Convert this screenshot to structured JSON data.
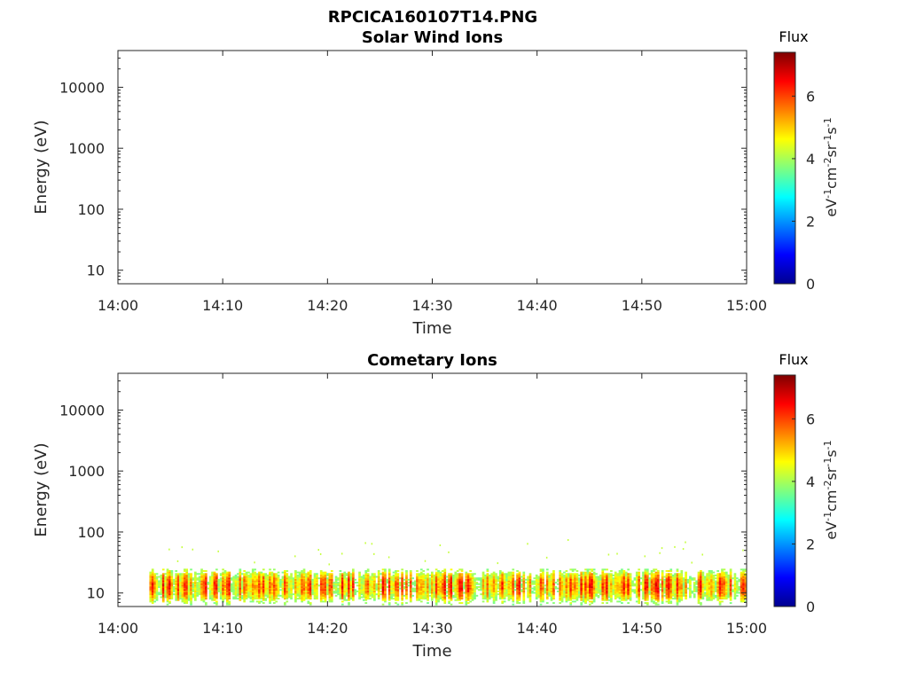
{
  "figure": {
    "title": "RPCICA160107T14.PNG"
  },
  "chart_data": [
    {
      "type": "heatmap",
      "title": "Solar Wind Ions",
      "xlabel": "Time",
      "ylabel": "Energy (eV)",
      "x_ticks": [
        "14:00",
        "14:10",
        "14:20",
        "14:30",
        "14:40",
        "14:50",
        "15:00"
      ],
      "y_ticks": [
        "10",
        "100",
        "1000",
        "10000"
      ],
      "y_scale": "log",
      "ylim": [
        6,
        40000
      ],
      "xlim": [
        "14:00",
        "15:00"
      ],
      "colorbar": {
        "title": "Flux",
        "label": "eV-1cm-2sr-1s-1",
        "ticks": [
          "0",
          "2",
          "4",
          "6"
        ],
        "range": [
          0,
          7.4
        ],
        "colormap": "jet"
      },
      "data_note": "empty"
    },
    {
      "type": "heatmap",
      "title": "Cometary Ions",
      "xlabel": "Time",
      "ylabel": "Energy (eV)",
      "x_ticks": [
        "14:00",
        "14:10",
        "14:20",
        "14:30",
        "14:40",
        "14:50",
        "15:00"
      ],
      "y_ticks": [
        "10",
        "100",
        "1000",
        "10000"
      ],
      "y_scale": "log",
      "ylim": [
        6,
        40000
      ],
      "xlim": [
        "14:00",
        "15:00"
      ],
      "colorbar": {
        "title": "Flux",
        "label": "eV-1cm-2sr-1s-1",
        "ticks": [
          "0",
          "2",
          "4",
          "6"
        ],
        "range": [
          0,
          7.4
        ],
        "colormap": "jet"
      },
      "data_start": "14:03",
      "data_end": "15:00",
      "band_energy_range_eV": [
        6,
        25
      ],
      "peak_energy_eV": 13,
      "peak_flux": 6.5,
      "scattered_energy_range_eV": [
        30,
        80
      ],
      "scattered_flux": 4.2
    }
  ]
}
